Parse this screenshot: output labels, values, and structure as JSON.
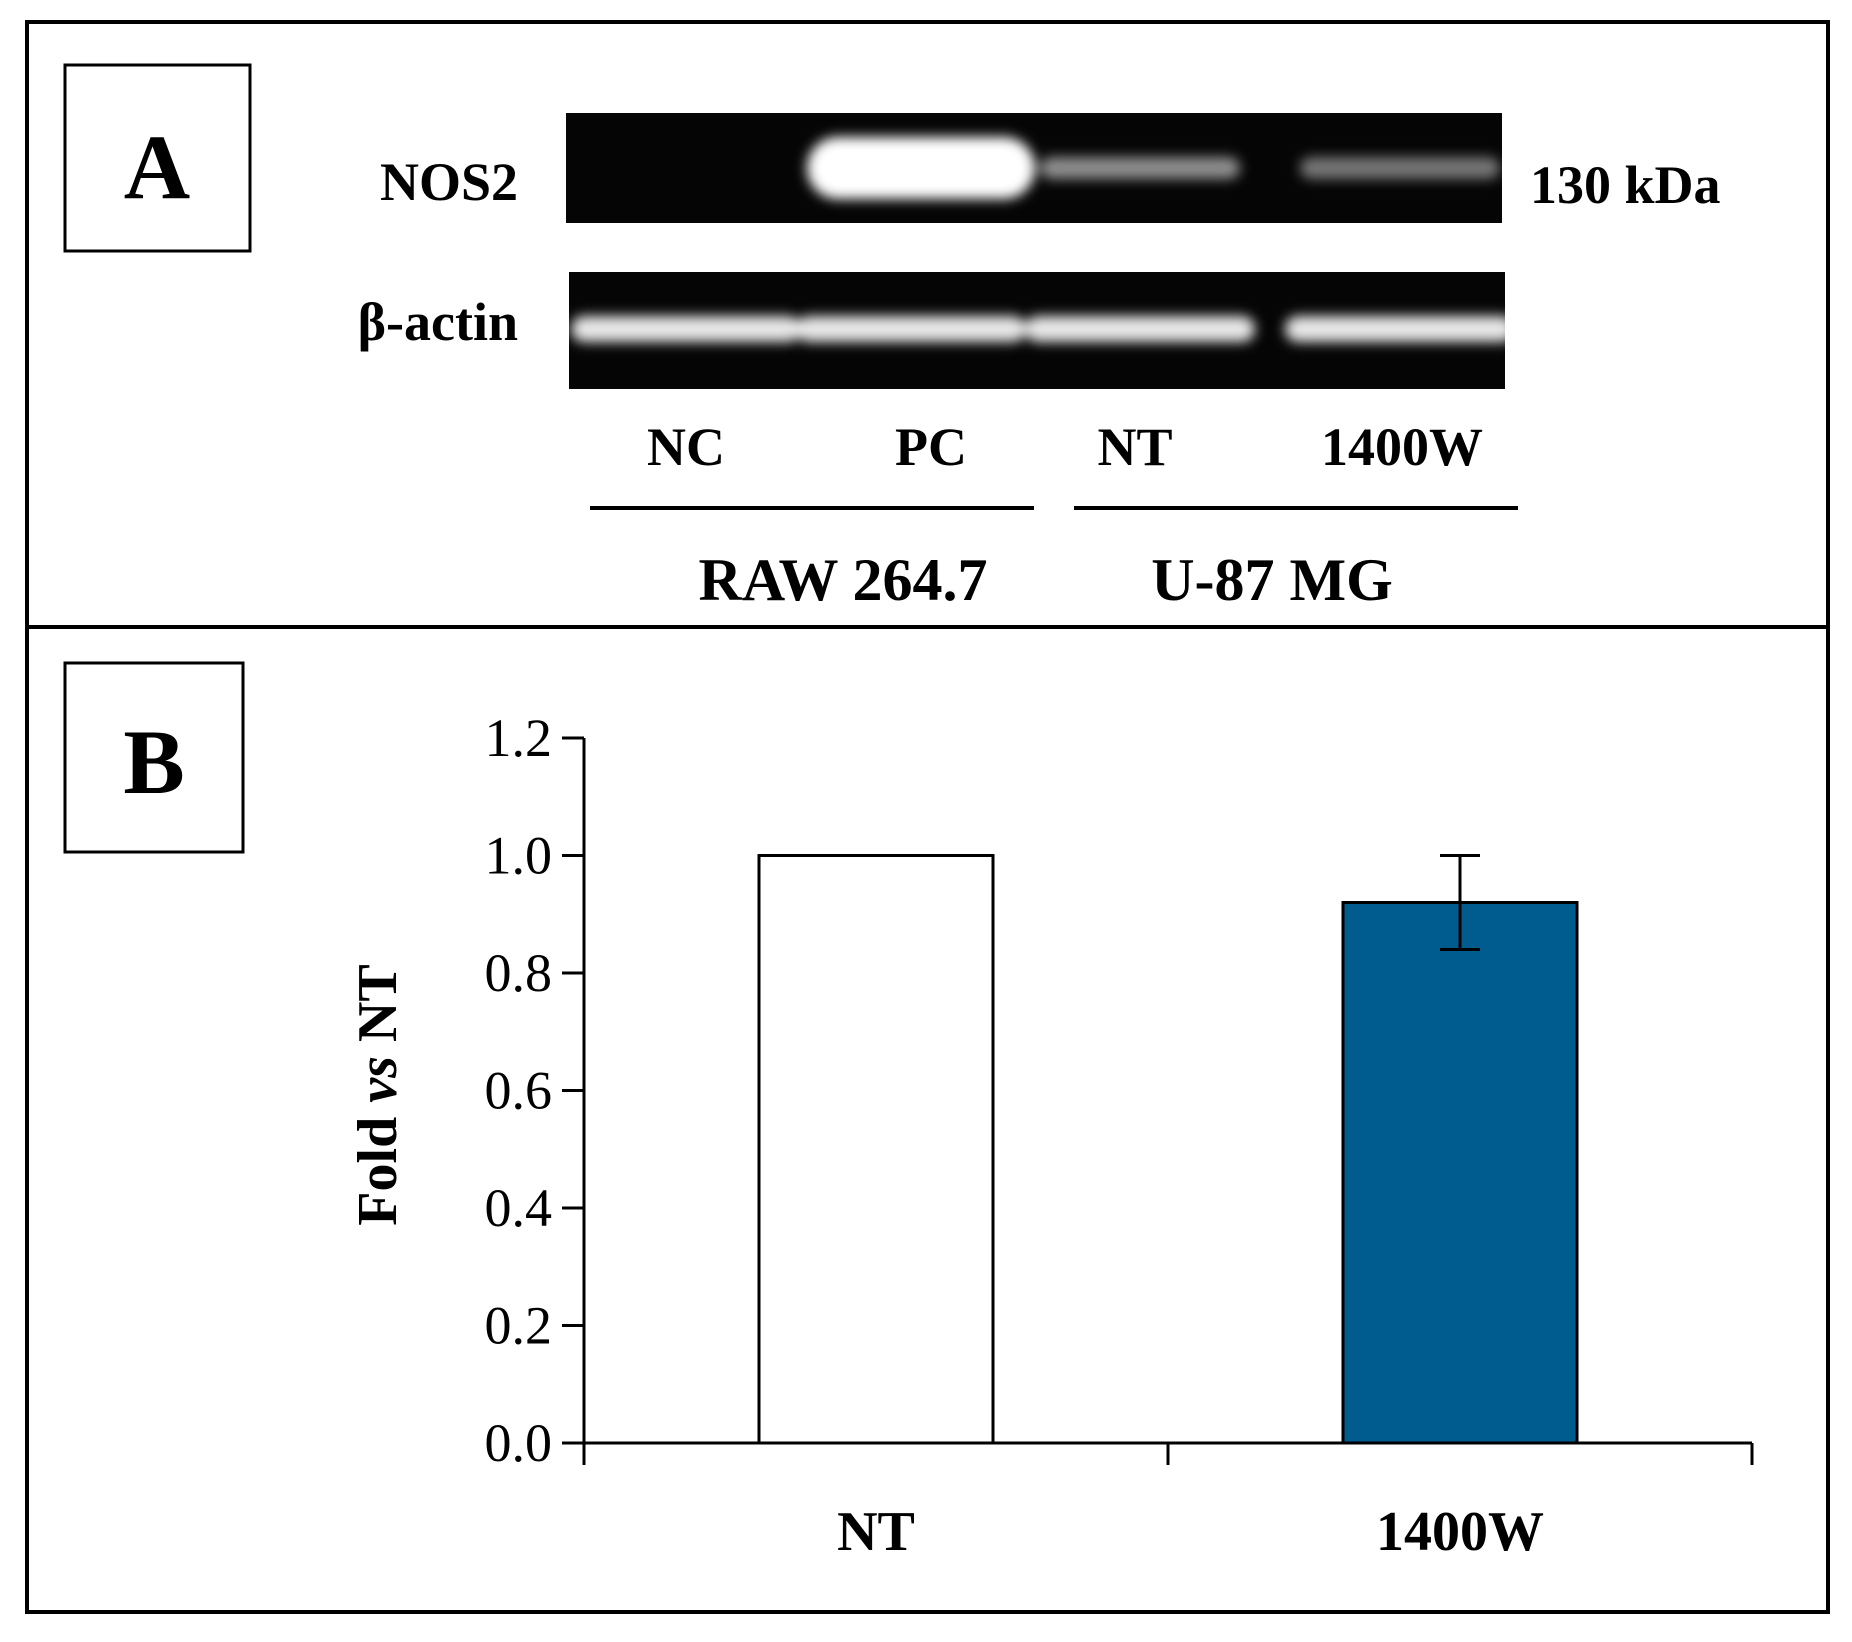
{
  "panel_a": {
    "label": "A",
    "blot_rows": [
      {
        "protein": "NOS2",
        "size": "130 kDa",
        "lane_intensity": [
          0.0,
          1.0,
          0.45,
          0.35
        ]
      },
      {
        "protein": "β-actin",
        "size": "",
        "lane_intensity": [
          0.9,
          0.9,
          0.9,
          0.9
        ]
      }
    ],
    "lanes": [
      "NC",
      "PC",
      "NT",
      "1400W"
    ],
    "groups": [
      "RAW 264.7",
      "U-87 MG"
    ]
  },
  "panel_b": {
    "label": "B"
  },
  "chart_data": {
    "type": "bar",
    "categories": [
      "NT",
      "1400W"
    ],
    "values": [
      1.0,
      0.92
    ],
    "errors": [
      0,
      0.08
    ],
    "bar_colors": [
      "#ffffff",
      "#005b8f"
    ],
    "title": "",
    "xlabel": "",
    "ylabel_parts": [
      "Fold ",
      "vs",
      " NT"
    ],
    "ylim": [
      0,
      1.2
    ],
    "yticks": [
      "0.0",
      "0.2",
      "0.4",
      "0.6",
      "0.8",
      "1.0",
      "1.2"
    ],
    "grid": false
  }
}
